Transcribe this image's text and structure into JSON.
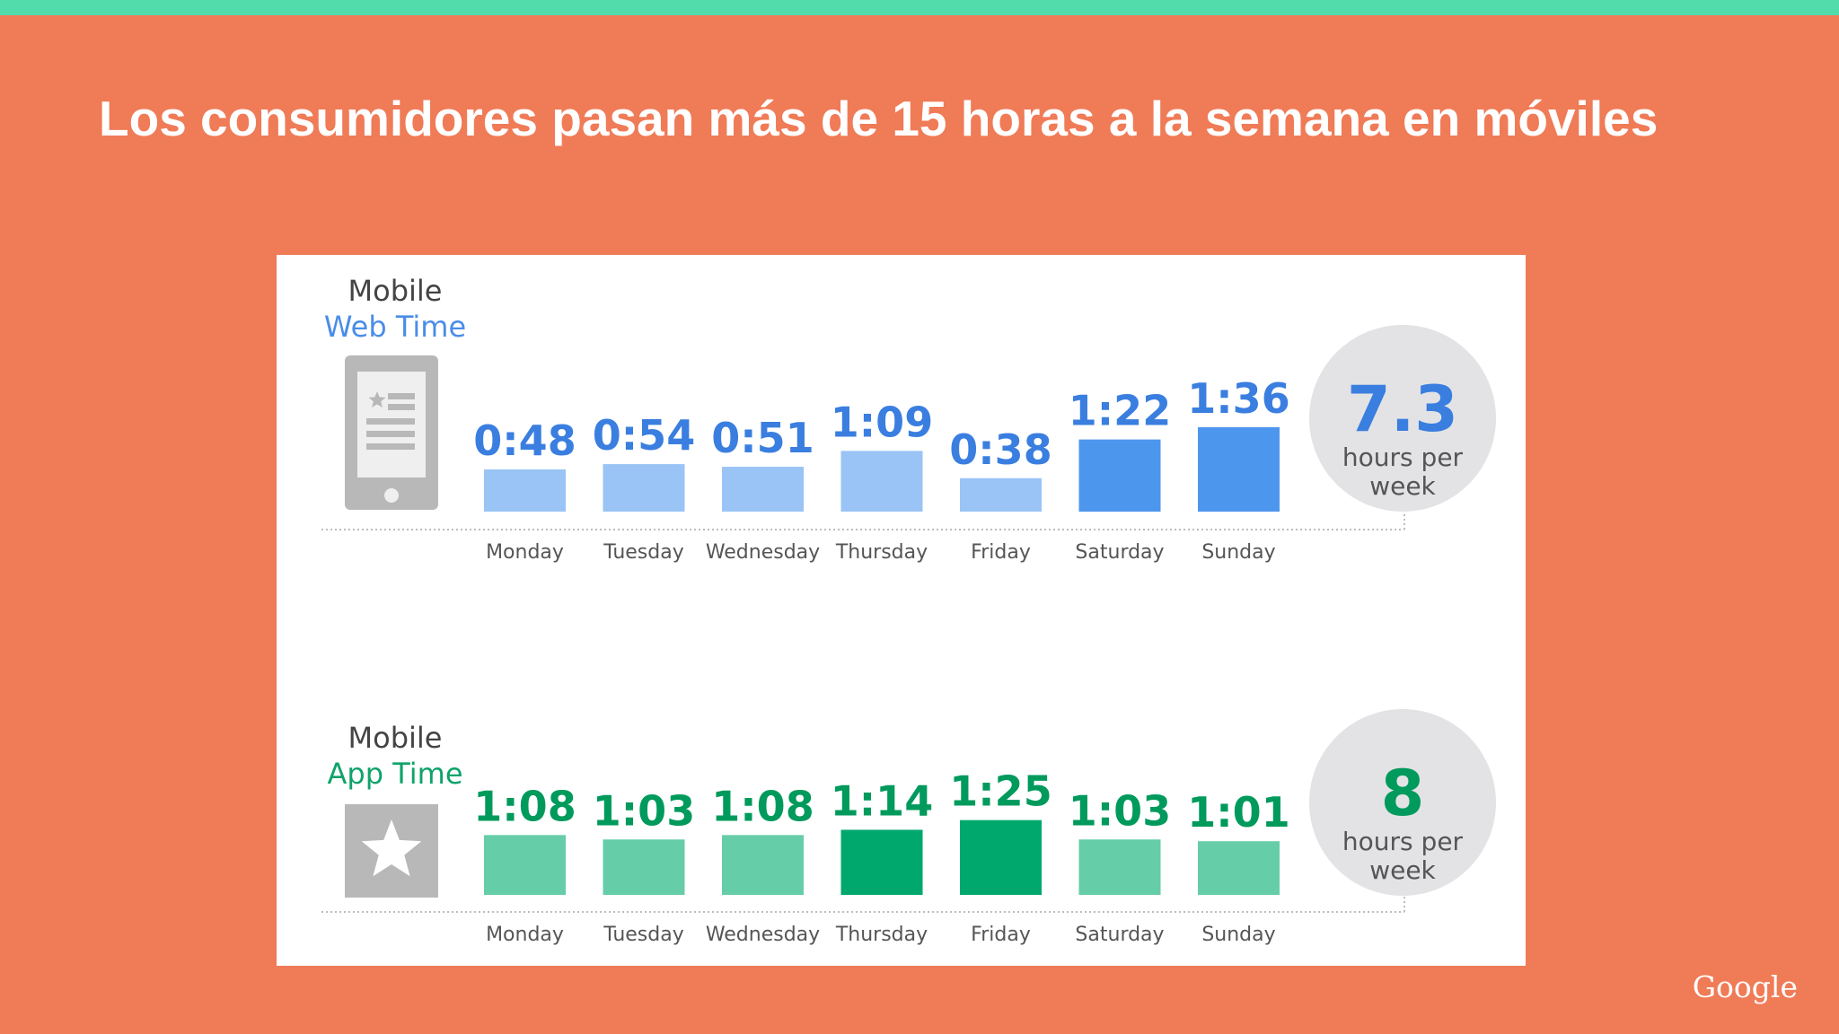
{
  "slide": {
    "title": "Los consumidores pasan más de 15 horas a la semana en móviles",
    "logo_text": "Google"
  },
  "colors": {
    "background": "#f07b57",
    "top_strip": "#52dbab",
    "web_light": "#9ac4f6",
    "web_dark": "#4d96ee",
    "web_label": "#3a7ee0",
    "app_light": "#66cda9",
    "app_dark": "#00a86d",
    "app_label": "#009a5c",
    "circle": "#e3e3e5"
  },
  "chart_data": [
    {
      "type": "bar",
      "series_title_line1": "Mobile",
      "series_title_line2": "Web Time",
      "icon": "mobile-web-page-icon",
      "categories": [
        "Monday",
        "Tuesday",
        "Wednesday",
        "Thursday",
        "Friday",
        "Saturday",
        "Sunday"
      ],
      "values_minutes": [
        48,
        54,
        51,
        69,
        38,
        82,
        96
      ],
      "value_labels": [
        "0:48",
        "0:54",
        "0:51",
        "1:09",
        "0:38",
        "1:22",
        "1:36"
      ],
      "highlight": [
        false,
        false,
        false,
        false,
        false,
        true,
        true
      ],
      "total_value": "7.3",
      "total_line1": "hours per",
      "total_line2": "week"
    },
    {
      "type": "bar",
      "series_title_line1": "Mobile",
      "series_title_line2": "App Time",
      "icon": "app-star-icon",
      "categories": [
        "Monday",
        "Tuesday",
        "Wednesday",
        "Thursday",
        "Friday",
        "Saturday",
        "Sunday"
      ],
      "values_minutes": [
        68,
        63,
        68,
        74,
        85,
        63,
        61
      ],
      "value_labels": [
        "1:08",
        "1:03",
        "1:08",
        "1:14",
        "1:25",
        "1:03",
        "1:01"
      ],
      "highlight": [
        false,
        false,
        false,
        true,
        true,
        false,
        false
      ],
      "total_value": "8",
      "total_line1": "hours per",
      "total_line2": "week"
    }
  ]
}
